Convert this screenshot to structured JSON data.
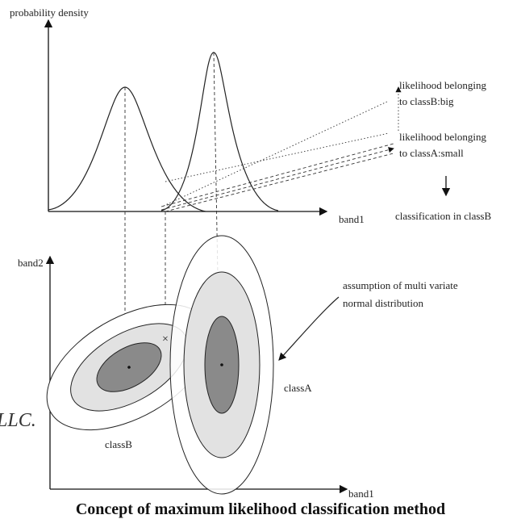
{
  "top_plot": {
    "y_label": "probability density",
    "x_label": "band1"
  },
  "annotations": {
    "classB_likelihood": [
      "likelihood belonging",
      "to classB:big"
    ],
    "classA_likelihood": [
      "likelihood belonging",
      "to classA:small"
    ],
    "result": "classification in classB"
  },
  "bottom_plot": {
    "y_label": "band2",
    "x_label": "band1",
    "note": [
      "assumption of multi variate",
      "normal distribution"
    ],
    "classA": "classA",
    "classB": "classB"
  },
  "watermark": "LLC.",
  "caption": "Concept of maximum likelihood classification method"
}
